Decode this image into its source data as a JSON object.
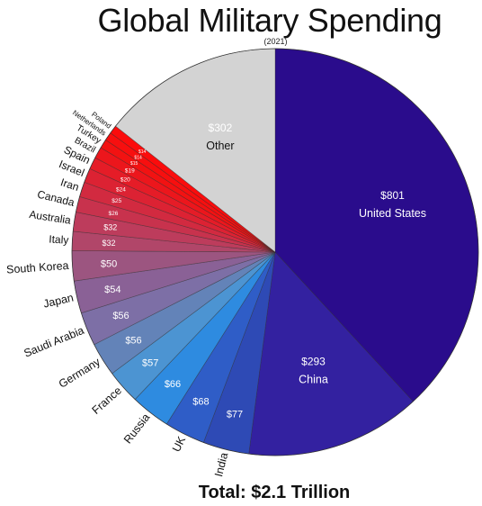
{
  "chart_data": {
    "type": "pie",
    "title": "Global Military Spending",
    "subtitle": "(2021)",
    "total_label": "Total: $2.1 Trillion",
    "slices": [
      {
        "label": "United States",
        "value": 801,
        "value_label": "$801",
        "color": "#2a0c8c"
      },
      {
        "label": "China",
        "value": 293,
        "value_label": "$293",
        "color": "#3321a0"
      },
      {
        "label": "India",
        "value": 77,
        "value_label": "$77",
        "color": "#2e4ab5"
      },
      {
        "label": "UK",
        "value": 68,
        "value_label": "$68",
        "color": "#2f5dc7"
      },
      {
        "label": "Russia",
        "value": 66,
        "value_label": "$66",
        "color": "#2e8be0"
      },
      {
        "label": "France",
        "value": 57,
        "value_label": "$57",
        "color": "#4c94d2"
      },
      {
        "label": "Germany",
        "value": 56,
        "value_label": "$56",
        "color": "#6383b8"
      },
      {
        "label": "Saudi Arabia",
        "value": 56,
        "value_label": "$56",
        "color": "#7d6fa6"
      },
      {
        "label": "Japan",
        "value": 54,
        "value_label": "$54",
        "color": "#8a6196"
      },
      {
        "label": "South Korea",
        "value": 50,
        "value_label": "$50",
        "color": "#9c5580"
      },
      {
        "label": "Italy",
        "value": 32,
        "value_label": "$32",
        "color": "#b14669"
      },
      {
        "label": "Australia",
        "value": 32,
        "value_label": "$32",
        "color": "#bd3c5c"
      },
      {
        "label": "Canada",
        "value": 26,
        "value_label": "$26",
        "color": "#c8324d"
      },
      {
        "label": "Iran",
        "value": 25,
        "value_label": "$25",
        "color": "#d22a40"
      },
      {
        "label": "Israel",
        "value": 24,
        "value_label": "$24",
        "color": "#dc2233"
      },
      {
        "label": "Spain",
        "value": 20,
        "value_label": "$20",
        "color": "#e51c27"
      },
      {
        "label": "Brazil",
        "value": 19,
        "value_label": "$19",
        "color": "#ec161c"
      },
      {
        "label": "Turkey",
        "value": 15,
        "value_label": "$15",
        "color": "#f21212"
      },
      {
        "label": "Netherlands",
        "value": 14,
        "value_label": "$14",
        "color": "#f70f0f"
      },
      {
        "label": "Poland",
        "value": 14,
        "value_label": "$14",
        "color": "#fb0c0c"
      },
      {
        "label": "Other",
        "value": 302,
        "value_label": "$302",
        "color": "#d3d3d3"
      }
    ]
  }
}
